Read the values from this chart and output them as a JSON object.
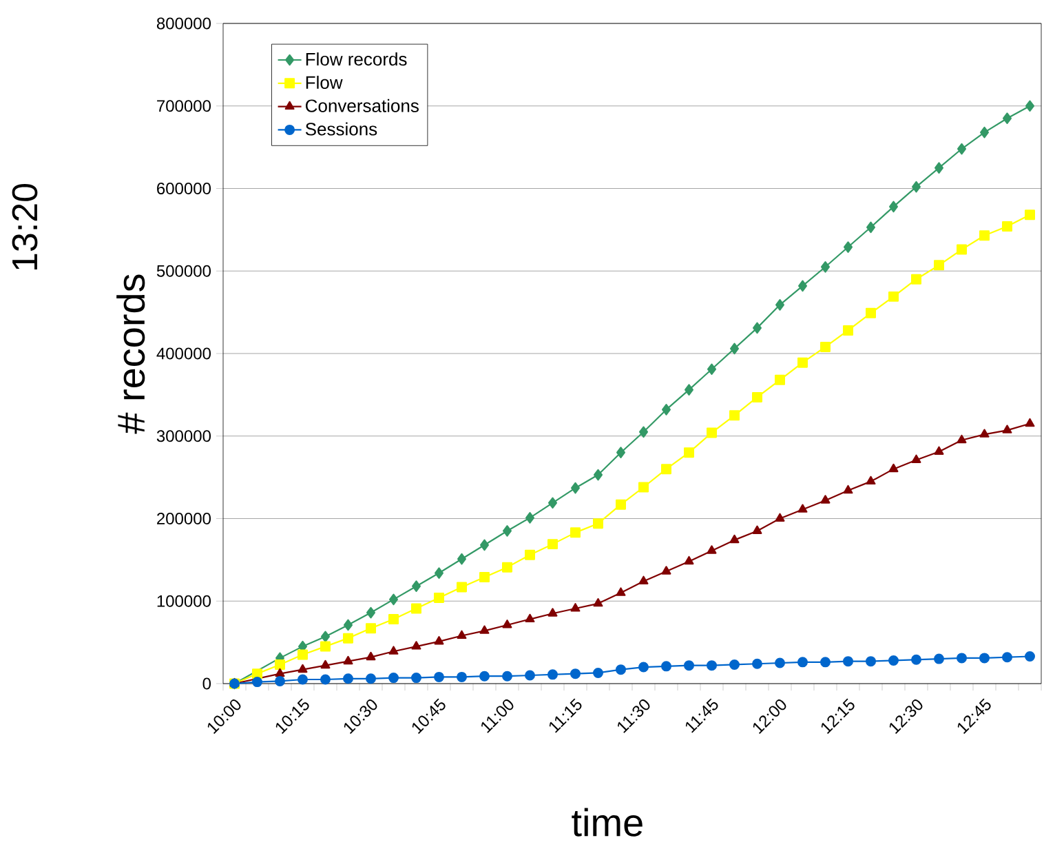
{
  "chart_data": {
    "type": "line",
    "xlabel": "time",
    "ylabel": "# records",
    "annotations": [
      "13:20"
    ],
    "categories": [
      "10:00",
      null,
      null,
      "10:15",
      null,
      null,
      "10:30",
      null,
      null,
      "10:45",
      null,
      null,
      "11:00",
      null,
      null,
      "11:15",
      null,
      null,
      "11:30",
      null,
      null,
      "11:45",
      null,
      null,
      "12:00",
      null,
      null,
      "12:15",
      null,
      null,
      "12:30",
      null,
      null,
      "12:45",
      null,
      null
    ],
    "series": [
      {
        "name": "Flow records",
        "color": "#339966",
        "marker": "diamond",
        "values": [
          0,
          null,
          31000,
          45000,
          57000,
          71000,
          86000,
          102000,
          118000,
          134000,
          151000,
          168000,
          185000,
          201000,
          219000,
          237000,
          253000,
          280000,
          305000,
          332000,
          356000,
          381000,
          406000,
          431000,
          459000,
          482000,
          505000,
          529000,
          553000,
          578000,
          602000,
          625000,
          648000,
          668000,
          685000,
          700000
        ]
      },
      {
        "name": "Flow",
        "color": "#ffff00",
        "marker": "square",
        "values": [
          0,
          12000,
          23000,
          35000,
          45000,
          55000,
          67000,
          78000,
          91000,
          104000,
          117000,
          129000,
          141000,
          156000,
          169000,
          183000,
          194000,
          217000,
          238000,
          260000,
          280000,
          304000,
          325000,
          347000,
          368000,
          389000,
          408000,
          428000,
          449000,
          469000,
          490000,
          507000,
          526000,
          543000,
          554000,
          568000
        ]
      },
      {
        "name": "Conversations",
        "color": "#800000",
        "marker": "triangle",
        "values": [
          0,
          null,
          12000,
          17000,
          22000,
          27000,
          32000,
          39000,
          45000,
          51000,
          58000,
          64000,
          71000,
          78000,
          85000,
          91000,
          97000,
          110000,
          124000,
          136000,
          148000,
          161000,
          174000,
          185000,
          200000,
          211000,
          222000,
          234000,
          245000,
          260000,
          271000,
          281000,
          295000,
          302000,
          307000,
          315000
        ]
      },
      {
        "name": "Sessions",
        "color": "#0066cc",
        "marker": "circle",
        "values": [
          0,
          2000,
          3000,
          5000,
          5000,
          6000,
          6000,
          7000,
          7000,
          8000,
          8000,
          9000,
          9000,
          10000,
          11000,
          12000,
          13000,
          17000,
          20000,
          21000,
          22000,
          22000,
          23000,
          24000,
          25000,
          26000,
          26000,
          27000,
          27000,
          28000,
          29000,
          30000,
          31000,
          31000,
          32000,
          33000
        ]
      }
    ],
    "ylim": [
      0,
      800000
    ],
    "yticks": [
      0,
      100000,
      200000,
      300000,
      400000,
      500000,
      600000,
      700000,
      800000
    ],
    "grid": "y",
    "legend": "top left",
    "line_style": "solid"
  }
}
